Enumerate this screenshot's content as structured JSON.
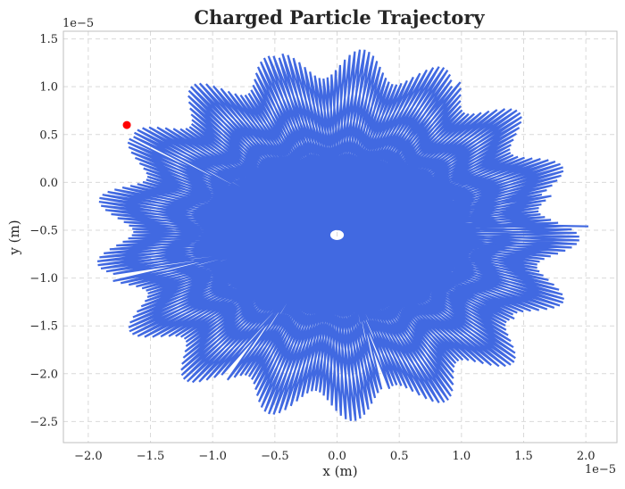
{
  "chart_data": {
    "type": "line",
    "title": "Charged Particle Trajectory",
    "xlabel": "x (m)",
    "ylabel": "y (m)",
    "x_offset_label": "1e−5",
    "y_offset_label": "1e−5",
    "xlim": [
      -2.2,
      2.25
    ],
    "ylim": [
      -2.72,
      1.58
    ],
    "x_ticks": [
      -2.0,
      -1.5,
      -1.0,
      -0.5,
      0.0,
      0.5,
      1.0,
      1.5,
      2.0
    ],
    "x_tick_labels": [
      "−2.0",
      "−1.5",
      "−1.0",
      "−0.5",
      "0.0",
      "0.5",
      "1.0",
      "1.5",
      "2.0"
    ],
    "y_ticks": [
      1.5,
      1.0,
      0.5,
      0.0,
      -0.5,
      -1.0,
      -1.5,
      -2.0,
      -2.5
    ],
    "y_tick_labels": [
      "1.5",
      "1.0",
      "0.5",
      "0.0",
      "−0.5",
      "−1.0",
      "−1.5",
      "−2.0",
      "−2.5"
    ],
    "grid": true,
    "trajectory": {
      "center": [
        0.0,
        -0.55
      ],
      "r_outer": 1.95,
      "r_inner": 0.18,
      "turns_per_step": 0.4377,
      "steps": 620,
      "end_point": [
        2.02,
        -0.46
      ],
      "color": "#4169e1"
    },
    "marker": {
      "x": -1.69,
      "y": 0.6,
      "color": "#ff0000"
    }
  }
}
